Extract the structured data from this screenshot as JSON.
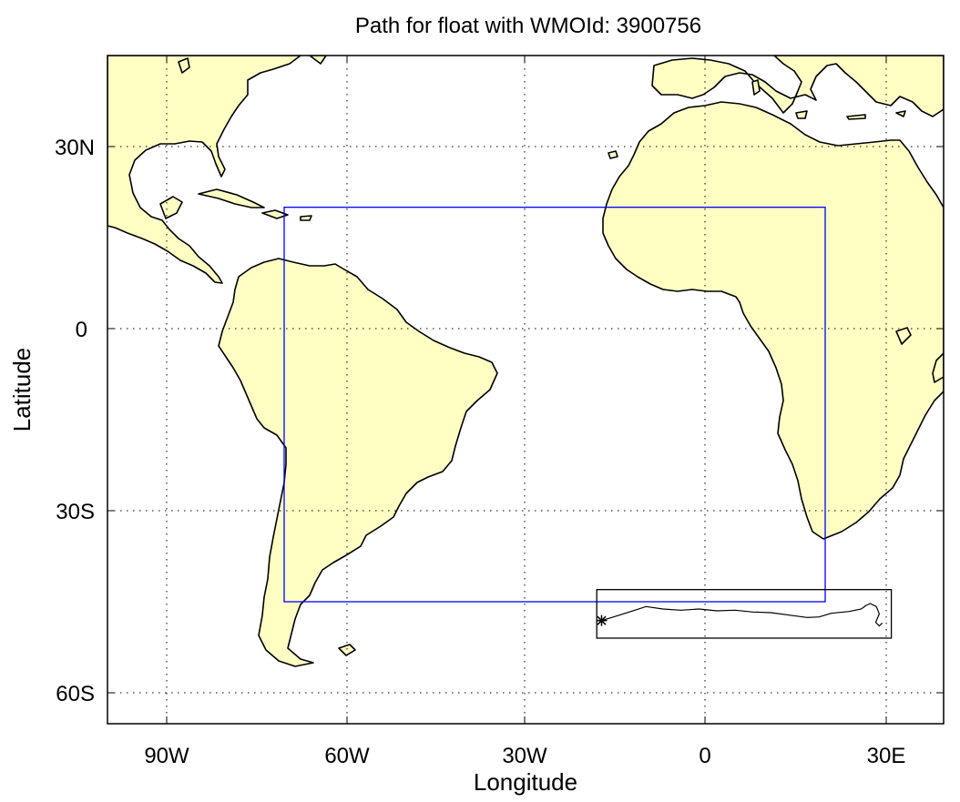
{
  "title": "Path for float with WMOId: 3900756",
  "xlabel": "Longitude",
  "ylabel": "Latitude",
  "x_ticks": [
    {
      "value": -90,
      "label": "90W"
    },
    {
      "value": -60,
      "label": "60W"
    },
    {
      "value": -30,
      "label": "30W"
    },
    {
      "value": 0,
      "label": "0"
    },
    {
      "value": 30,
      "label": "30E"
    }
  ],
  "y_ticks": [
    {
      "value": 30,
      "label": "30N"
    },
    {
      "value": 0,
      "label": "0"
    },
    {
      "value": -30,
      "label": "30S"
    },
    {
      "value": -60,
      "label": "60S"
    }
  ],
  "map_extent": {
    "lon": [
      -100,
      39
    ],
    "lat": [
      -65,
      45
    ]
  },
  "colors": {
    "land": "#ffffc4",
    "region_box": "#0000ff",
    "path_box": "#000000",
    "float_path": "#000000"
  },
  "region_box": {
    "lon": [
      -70,
      20
    ],
    "lat": [
      -45,
      20
    ]
  },
  "path_box": {
    "lon": [
      -18,
      31
    ],
    "lat": [
      -51,
      -43
    ]
  },
  "float_path": {
    "start_marker": "asterisk",
    "points": [
      [
        -17.2,
        -48.1
      ],
      [
        -15.5,
        -47.6
      ],
      [
        -12.6,
        -46.7
      ],
      [
        -9.8,
        -45.8
      ],
      [
        -7,
        -46.2
      ],
      [
        -4,
        -46.4
      ],
      [
        -1,
        -46.2
      ],
      [
        2,
        -46.5
      ],
      [
        5,
        -46.4
      ],
      [
        8,
        -46.7
      ],
      [
        11,
        -46.8
      ],
      [
        14,
        -47.2
      ],
      [
        17,
        -47.6
      ],
      [
        19,
        -47.5
      ],
      [
        21,
        -46.9
      ],
      [
        24,
        -46.6
      ],
      [
        26,
        -46.2
      ],
      [
        26.8,
        -45.6
      ],
      [
        27.5,
        -45.3
      ],
      [
        28.5,
        -45.8
      ],
      [
        29,
        -47
      ],
      [
        28.4,
        -48.4
      ],
      [
        29,
        -49
      ],
      [
        29.5,
        -48.5
      ]
    ]
  }
}
